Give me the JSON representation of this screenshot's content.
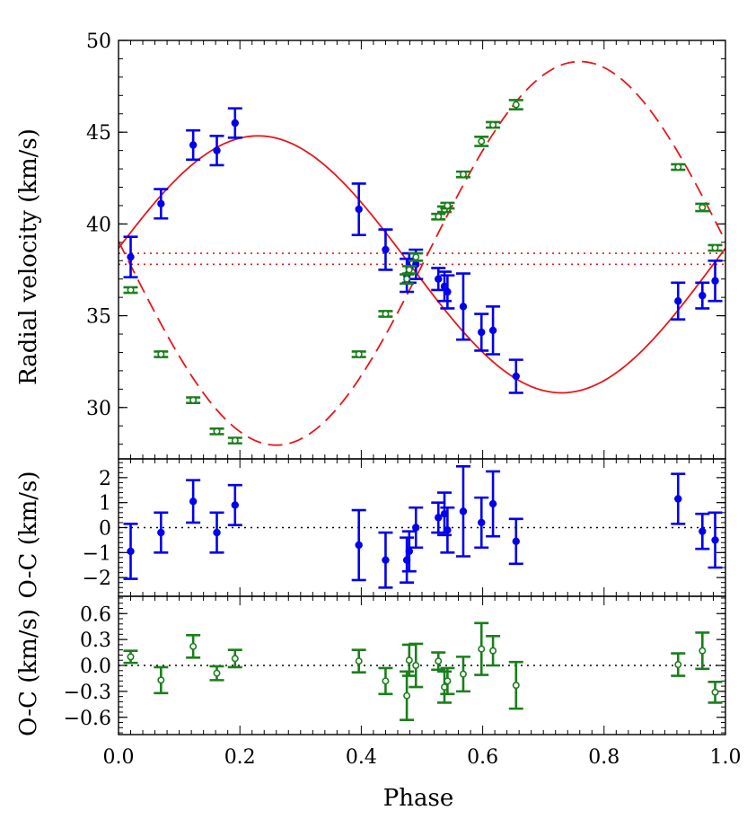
{
  "chart_data": {
    "type": "scatter",
    "xlabel": "Phase",
    "xlim": [
      0.0,
      1.0
    ],
    "x_ticks": [
      {
        "value": 0.0,
        "label": "0.0"
      },
      {
        "value": 0.2,
        "label": "0.2"
      },
      {
        "value": 0.4,
        "label": "0.4"
      },
      {
        "value": 0.6,
        "label": "0.6"
      },
      {
        "value": 0.8,
        "label": "0.8"
      },
      {
        "value": 1.0,
        "label": "1.0"
      }
    ],
    "colors": {
      "primary": "#0000ee",
      "secondary": "#1a7f1a",
      "model": "#e8161a"
    },
    "panels": [
      {
        "id": "rv",
        "ylabel": "Radial velocity (km/s)",
        "ylim": [
          27.2,
          50.0
        ],
        "y_ticks": [
          {
            "value": 30,
            "label": "30"
          },
          {
            "value": 35,
            "label": "35"
          },
          {
            "value": 40,
            "label": "40"
          },
          {
            "value": 45,
            "label": "45"
          },
          {
            "value": 50,
            "label": "50"
          }
        ],
        "systemic_velocities": [
          38.4,
          37.8
        ],
        "models": [
          {
            "name": "primary orbit",
            "style": "solid",
            "gamma": 37.8,
            "K": 7.0,
            "phase_of_max": 0.23
          },
          {
            "name": "secondary orbit",
            "style": "dashed",
            "gamma": 38.4,
            "K": 10.45,
            "phase_of_max": 0.76
          }
        ],
        "series": [
          {
            "name": "primary",
            "marker": "filled-circle",
            "points": [
              {
                "x": 0.02,
                "y": 38.2,
                "err": 1.1
              },
              {
                "x": 0.07,
                "y": 41.1,
                "err": 0.8
              },
              {
                "x": 0.123,
                "y": 44.3,
                "err": 0.8
              },
              {
                "x": 0.162,
                "y": 44.0,
                "err": 0.8
              },
              {
                "x": 0.192,
                "y": 45.5,
                "err": 0.8
              },
              {
                "x": 0.396,
                "y": 40.8,
                "err": 1.4
              },
              {
                "x": 0.44,
                "y": 38.6,
                "err": 1.1
              },
              {
                "x": 0.475,
                "y": 37.2,
                "err": 0.9
              },
              {
                "x": 0.479,
                "y": 37.6,
                "err": 0.8
              },
              {
                "x": 0.49,
                "y": 37.8,
                "err": 0.8
              },
              {
                "x": 0.527,
                "y": 37.0,
                "err": 0.6
              },
              {
                "x": 0.537,
                "y": 36.6,
                "err": 0.8
              },
              {
                "x": 0.542,
                "y": 36.3,
                "err": 0.9
              },
              {
                "x": 0.568,
                "y": 35.5,
                "err": 1.8
              },
              {
                "x": 0.598,
                "y": 34.1,
                "err": 1.0
              },
              {
                "x": 0.617,
                "y": 34.2,
                "err": 1.3
              },
              {
                "x": 0.655,
                "y": 31.7,
                "err": 0.9
              },
              {
                "x": 0.922,
                "y": 35.8,
                "err": 1.0
              },
              {
                "x": 0.962,
                "y": 36.1,
                "err": 0.7
              },
              {
                "x": 0.983,
                "y": 36.9,
                "err": 1.1
              }
            ]
          },
          {
            "name": "secondary",
            "marker": "open-circle",
            "points": [
              {
                "x": 0.02,
                "y": 36.4,
                "err": 0.15
              },
              {
                "x": 0.07,
                "y": 32.9,
                "err": 0.15
              },
              {
                "x": 0.123,
                "y": 30.4,
                "err": 0.15
              },
              {
                "x": 0.162,
                "y": 28.7,
                "err": 0.15
              },
              {
                "x": 0.192,
                "y": 28.2,
                "err": 0.15
              },
              {
                "x": 0.396,
                "y": 32.9,
                "err": 0.15
              },
              {
                "x": 0.44,
                "y": 35.1,
                "err": 0.15
              },
              {
                "x": 0.475,
                "y": 37.0,
                "err": 0.25
              },
              {
                "x": 0.479,
                "y": 37.5,
                "err": 0.2
              },
              {
                "x": 0.49,
                "y": 38.2,
                "err": 0.2
              },
              {
                "x": 0.527,
                "y": 40.4,
                "err": 0.15
              },
              {
                "x": 0.537,
                "y": 40.8,
                "err": 0.15
              },
              {
                "x": 0.542,
                "y": 41.0,
                "err": 0.15
              },
              {
                "x": 0.568,
                "y": 42.7,
                "err": 0.15
              },
              {
                "x": 0.598,
                "y": 44.5,
                "err": 0.25
              },
              {
                "x": 0.617,
                "y": 45.4,
                "err": 0.15
              },
              {
                "x": 0.655,
                "y": 46.5,
                "err": 0.25
              },
              {
                "x": 0.922,
                "y": 43.1,
                "err": 0.15
              },
              {
                "x": 0.962,
                "y": 40.9,
                "err": 0.2
              },
              {
                "x": 0.983,
                "y": 38.7,
                "err": 0.15
              }
            ]
          }
        ]
      },
      {
        "id": "oc-primary",
        "ylabel": "O-C (km/s)",
        "ylim": [
          -2.75,
          2.75
        ],
        "zero_line": true,
        "y_ticks": [
          {
            "value": 2,
            "label": "2"
          },
          {
            "value": 1,
            "label": "1"
          },
          {
            "value": 0,
            "label": "0"
          },
          {
            "value": -1,
            "label": "−1"
          },
          {
            "value": -2,
            "label": "−2"
          }
        ],
        "series": [
          {
            "name": "primary",
            "marker": "filled-circle",
            "points": [
              {
                "x": 0.02,
                "y": -0.95,
                "err": 1.1
              },
              {
                "x": 0.07,
                "y": -0.2,
                "err": 0.8
              },
              {
                "x": 0.123,
                "y": 1.05,
                "err": 0.85
              },
              {
                "x": 0.162,
                "y": -0.2,
                "err": 0.8
              },
              {
                "x": 0.192,
                "y": 0.9,
                "err": 0.8
              },
              {
                "x": 0.396,
                "y": -0.7,
                "err": 1.4
              },
              {
                "x": 0.44,
                "y": -1.3,
                "err": 1.1
              },
              {
                "x": 0.475,
                "y": -1.3,
                "err": 0.9
              },
              {
                "x": 0.479,
                "y": -0.95,
                "err": 0.8
              },
              {
                "x": 0.49,
                "y": 0.0,
                "err": 0.8
              },
              {
                "x": 0.527,
                "y": 0.4,
                "err": 0.6
              },
              {
                "x": 0.537,
                "y": 0.55,
                "err": 0.85
              },
              {
                "x": 0.542,
                "y": -0.1,
                "err": 0.9
              },
              {
                "x": 0.568,
                "y": 0.65,
                "err": 1.8
              },
              {
                "x": 0.598,
                "y": 0.2,
                "err": 1.0
              },
              {
                "x": 0.617,
                "y": 0.95,
                "err": 1.3
              },
              {
                "x": 0.655,
                "y": -0.55,
                "err": 0.9
              },
              {
                "x": 0.922,
                "y": 1.15,
                "err": 1.0
              },
              {
                "x": 0.962,
                "y": -0.15,
                "err": 0.7
              },
              {
                "x": 0.983,
                "y": -0.5,
                "err": 1.1
              }
            ]
          }
        ]
      },
      {
        "id": "oc-secondary",
        "ylabel": "O-C (km/s)",
        "ylim": [
          -0.8,
          0.8
        ],
        "zero_line": true,
        "y_ticks": [
          {
            "value": 0.6,
            "label": "0.6"
          },
          {
            "value": 0.3,
            "label": "0.3"
          },
          {
            "value": 0.0,
            "label": "0.0"
          },
          {
            "value": -0.3,
            "label": "−0.3"
          },
          {
            "value": -0.6,
            "label": "−0.6"
          }
        ],
        "series": [
          {
            "name": "secondary",
            "marker": "open-circle",
            "points": [
              {
                "x": 0.02,
                "y": 0.1,
                "err": 0.07
              },
              {
                "x": 0.07,
                "y": -0.17,
                "err": 0.15
              },
              {
                "x": 0.123,
                "y": 0.22,
                "err": 0.13
              },
              {
                "x": 0.162,
                "y": -0.09,
                "err": 0.08
              },
              {
                "x": 0.192,
                "y": 0.08,
                "err": 0.1
              },
              {
                "x": 0.396,
                "y": 0.05,
                "err": 0.13
              },
              {
                "x": 0.44,
                "y": -0.18,
                "err": 0.15
              },
              {
                "x": 0.475,
                "y": -0.35,
                "err": 0.28
              },
              {
                "x": 0.479,
                "y": 0.06,
                "err": 0.18
              },
              {
                "x": 0.49,
                "y": 0.0,
                "err": 0.25
              },
              {
                "x": 0.527,
                "y": 0.05,
                "err": 0.1
              },
              {
                "x": 0.537,
                "y": -0.25,
                "err": 0.18
              },
              {
                "x": 0.542,
                "y": -0.18,
                "err": 0.15
              },
              {
                "x": 0.568,
                "y": -0.1,
                "err": 0.2
              },
              {
                "x": 0.598,
                "y": 0.19,
                "err": 0.3
              },
              {
                "x": 0.617,
                "y": 0.17,
                "err": 0.17
              },
              {
                "x": 0.655,
                "y": -0.23,
                "err": 0.27
              },
              {
                "x": 0.922,
                "y": 0.01,
                "err": 0.13
              },
              {
                "x": 0.962,
                "y": 0.17,
                "err": 0.21
              },
              {
                "x": 0.983,
                "y": -0.31,
                "err": 0.12
              }
            ]
          }
        ]
      }
    ]
  }
}
